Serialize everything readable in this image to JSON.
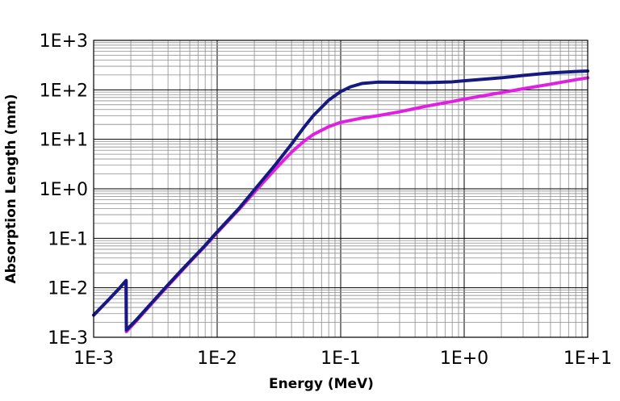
{
  "chart_data": {
    "type": "line",
    "xscale": "log",
    "yscale": "log",
    "xlabel": "Energy (MeV)",
    "ylabel": "Absorption Length (mm)",
    "xlim": [
      0.001,
      10
    ],
    "ylim": [
      0.001,
      1000
    ],
    "x_tick_labels": [
      "1E-3",
      "1E-2",
      "1E-1",
      "1E+0",
      "1E+1"
    ],
    "y_tick_labels": [
      "1E-3",
      "1E-2",
      "1E-1",
      "1E+0",
      "1E+1",
      "1E+2",
      "1E+3"
    ],
    "grid": true,
    "series": [
      {
        "color": "#e020e0",
        "points": [
          [
            0.001,
            0.0028
          ],
          [
            0.0013,
            0.0055
          ],
          [
            0.0016,
            0.0095
          ],
          [
            0.00183,
            0.014
          ],
          [
            0.00184,
            0.0013
          ],
          [
            0.0022,
            0.0021
          ],
          [
            0.003,
            0.005
          ],
          [
            0.004,
            0.011
          ],
          [
            0.005,
            0.02
          ],
          [
            0.006,
            0.033
          ],
          [
            0.008,
            0.07
          ],
          [
            0.01,
            0.13
          ],
          [
            0.015,
            0.38
          ],
          [
            0.02,
            0.85
          ],
          [
            0.03,
            2.6
          ],
          [
            0.04,
            5.5
          ],
          [
            0.05,
            9
          ],
          [
            0.06,
            12.5
          ],
          [
            0.08,
            18
          ],
          [
            0.1,
            22
          ],
          [
            0.15,
            27
          ],
          [
            0.2,
            30
          ],
          [
            0.3,
            36
          ],
          [
            0.5,
            47
          ],
          [
            0.8,
            58
          ],
          [
            1,
            65
          ],
          [
            2,
            88
          ],
          [
            3,
            105
          ],
          [
            5,
            130
          ],
          [
            8,
            160
          ],
          [
            10,
            175
          ]
        ]
      },
      {
        "color": "#151a80",
        "points": [
          [
            0.001,
            0.0028
          ],
          [
            0.0013,
            0.0055
          ],
          [
            0.0016,
            0.0095
          ],
          [
            0.00183,
            0.014
          ],
          [
            0.00184,
            0.0014
          ],
          [
            0.0022,
            0.0022
          ],
          [
            0.003,
            0.0052
          ],
          [
            0.004,
            0.0115
          ],
          [
            0.005,
            0.021
          ],
          [
            0.006,
            0.034
          ],
          [
            0.008,
            0.072
          ],
          [
            0.01,
            0.135
          ],
          [
            0.015,
            0.4
          ],
          [
            0.02,
            0.95
          ],
          [
            0.03,
            3.2
          ],
          [
            0.04,
            8
          ],
          [
            0.05,
            17
          ],
          [
            0.06,
            30
          ],
          [
            0.08,
            62
          ],
          [
            0.1,
            92
          ],
          [
            0.12,
            115
          ],
          [
            0.15,
            135
          ],
          [
            0.2,
            143
          ],
          [
            0.3,
            142
          ],
          [
            0.5,
            140
          ],
          [
            0.8,
            145
          ],
          [
            1,
            152
          ],
          [
            2,
            175
          ],
          [
            3,
            195
          ],
          [
            5,
            220
          ],
          [
            8,
            235
          ],
          [
            10,
            240
          ]
        ]
      }
    ]
  }
}
